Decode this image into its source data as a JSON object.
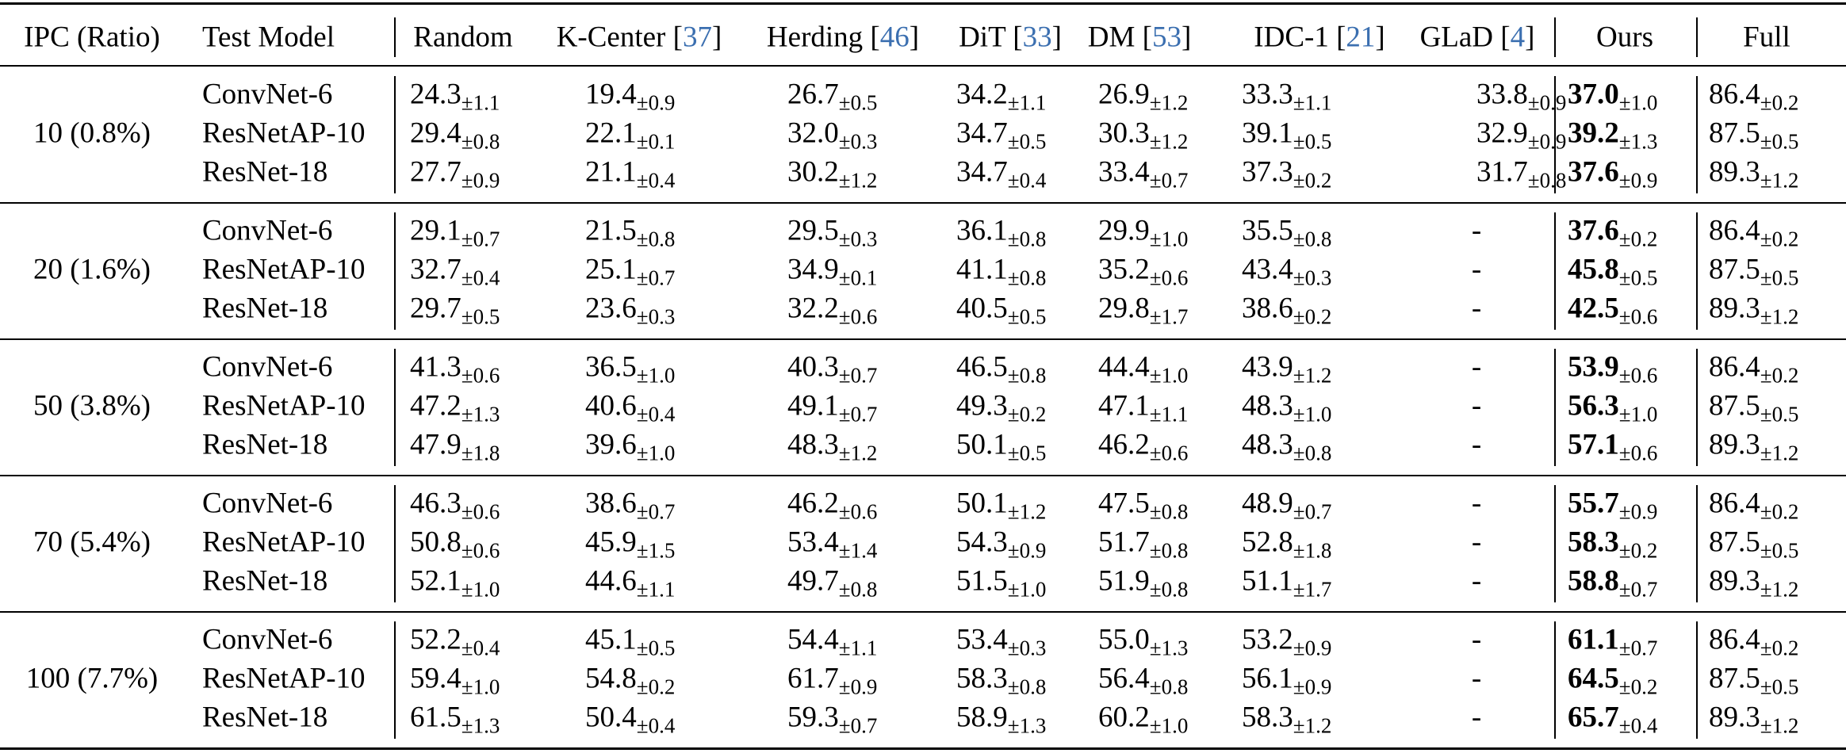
{
  "table": {
    "columns": [
      "IPC (Ratio)",
      "Test Model",
      "Random",
      [
        "K-Center [",
        "37",
        "]"
      ],
      [
        "Herding [",
        "46",
        "]"
      ],
      [
        "DiT [",
        "33",
        "]"
      ],
      [
        "DM [",
        "53",
        "]"
      ],
      [
        "IDC-1 [",
        "21",
        "]"
      ],
      [
        "GLaD [",
        "4",
        "]"
      ],
      "Ours",
      "Full"
    ],
    "groups": [
      {
        "ipc": "10 (0.8%)",
        "rows": [
          {
            "model": "ConvNet-6",
            "cells": [
              [
                "24.3",
                "±1.1"
              ],
              [
                "19.4",
                "±0.9"
              ],
              [
                "26.7",
                "±0.5"
              ],
              [
                "34.2",
                "±1.1"
              ],
              [
                "26.9",
                "±1.2"
              ],
              [
                "33.3",
                "±1.1"
              ],
              [
                "33.8",
                "±0.9"
              ],
              [
                "37.0",
                "±1.0"
              ],
              [
                "86.4",
                "±0.2"
              ]
            ]
          },
          {
            "model": "ResNetAP-10",
            "cells": [
              [
                "29.4",
                "±0.8"
              ],
              [
                "22.1",
                "±0.1"
              ],
              [
                "32.0",
                "±0.3"
              ],
              [
                "34.7",
                "±0.5"
              ],
              [
                "30.3",
                "±1.2"
              ],
              [
                "39.1",
                "±0.5"
              ],
              [
                "32.9",
                "±0.9"
              ],
              [
                "39.2",
                "±1.3"
              ],
              [
                "87.5",
                "±0.5"
              ]
            ]
          },
          {
            "model": "ResNet-18",
            "cells": [
              [
                "27.7",
                "±0.9"
              ],
              [
                "21.1",
                "±0.4"
              ],
              [
                "30.2",
                "±1.2"
              ],
              [
                "34.7",
                "±0.4"
              ],
              [
                "33.4",
                "±0.7"
              ],
              [
                "37.3",
                "±0.2"
              ],
              [
                "31.7",
                "±0.8"
              ],
              [
                "37.6",
                "±0.9"
              ],
              [
                "89.3",
                "±1.2"
              ]
            ]
          }
        ]
      },
      {
        "ipc": "20 (1.6%)",
        "rows": [
          {
            "model": "ConvNet-6",
            "cells": [
              [
                "29.1",
                "±0.7"
              ],
              [
                "21.5",
                "±0.8"
              ],
              [
                "29.5",
                "±0.3"
              ],
              [
                "36.1",
                "±0.8"
              ],
              [
                "29.9",
                "±1.0"
              ],
              [
                "35.5",
                "±0.8"
              ],
              [
                "-"
              ],
              [
                "37.6",
                "±0.2"
              ],
              [
                "86.4",
                "±0.2"
              ]
            ]
          },
          {
            "model": "ResNetAP-10",
            "cells": [
              [
                "32.7",
                "±0.4"
              ],
              [
                "25.1",
                "±0.7"
              ],
              [
                "34.9",
                "±0.1"
              ],
              [
                "41.1",
                "±0.8"
              ],
              [
                "35.2",
                "±0.6"
              ],
              [
                "43.4",
                "±0.3"
              ],
              [
                "-"
              ],
              [
                "45.8",
                "±0.5"
              ],
              [
                "87.5",
                "±0.5"
              ]
            ]
          },
          {
            "model": "ResNet-18",
            "cells": [
              [
                "29.7",
                "±0.5"
              ],
              [
                "23.6",
                "±0.3"
              ],
              [
                "32.2",
                "±0.6"
              ],
              [
                "40.5",
                "±0.5"
              ],
              [
                "29.8",
                "±1.7"
              ],
              [
                "38.6",
                "±0.2"
              ],
              [
                "-"
              ],
              [
                "42.5",
                "±0.6"
              ],
              [
                "89.3",
                "±1.2"
              ]
            ]
          }
        ]
      },
      {
        "ipc": "50 (3.8%)",
        "rows": [
          {
            "model": "ConvNet-6",
            "cells": [
              [
                "41.3",
                "±0.6"
              ],
              [
                "36.5",
                "±1.0"
              ],
              [
                "40.3",
                "±0.7"
              ],
              [
                "46.5",
                "±0.8"
              ],
              [
                "44.4",
                "±1.0"
              ],
              [
                "43.9",
                "±1.2"
              ],
              [
                "-"
              ],
              [
                "53.9",
                "±0.6"
              ],
              [
                "86.4",
                "±0.2"
              ]
            ]
          },
          {
            "model": "ResNetAP-10",
            "cells": [
              [
                "47.2",
                "±1.3"
              ],
              [
                "40.6",
                "±0.4"
              ],
              [
                "49.1",
                "±0.7"
              ],
              [
                "49.3",
                "±0.2"
              ],
              [
                "47.1",
                "±1.1"
              ],
              [
                "48.3",
                "±1.0"
              ],
              [
                "-"
              ],
              [
                "56.3",
                "±1.0"
              ],
              [
                "87.5",
                "±0.5"
              ]
            ]
          },
          {
            "model": "ResNet-18",
            "cells": [
              [
                "47.9",
                "±1.8"
              ],
              [
                "39.6",
                "±1.0"
              ],
              [
                "48.3",
                "±1.2"
              ],
              [
                "50.1",
                "±0.5"
              ],
              [
                "46.2",
                "±0.6"
              ],
              [
                "48.3",
                "±0.8"
              ],
              [
                "-"
              ],
              [
                "57.1",
                "±0.6"
              ],
              [
                "89.3",
                "±1.2"
              ]
            ]
          }
        ]
      },
      {
        "ipc": "70 (5.4%)",
        "rows": [
          {
            "model": "ConvNet-6",
            "cells": [
              [
                "46.3",
                "±0.6"
              ],
              [
                "38.6",
                "±0.7"
              ],
              [
                "46.2",
                "±0.6"
              ],
              [
                "50.1",
                "±1.2"
              ],
              [
                "47.5",
                "±0.8"
              ],
              [
                "48.9",
                "±0.7"
              ],
              [
                "-"
              ],
              [
                "55.7",
                "±0.9"
              ],
              [
                "86.4",
                "±0.2"
              ]
            ]
          },
          {
            "model": "ResNetAP-10",
            "cells": [
              [
                "50.8",
                "±0.6"
              ],
              [
                "45.9",
                "±1.5"
              ],
              [
                "53.4",
                "±1.4"
              ],
              [
                "54.3",
                "±0.9"
              ],
              [
                "51.7",
                "±0.8"
              ],
              [
                "52.8",
                "±1.8"
              ],
              [
                "-"
              ],
              [
                "58.3",
                "±0.2"
              ],
              [
                "87.5",
                "±0.5"
              ]
            ]
          },
          {
            "model": "ResNet-18",
            "cells": [
              [
                "52.1",
                "±1.0"
              ],
              [
                "44.6",
                "±1.1"
              ],
              [
                "49.7",
                "±0.8"
              ],
              [
                "51.5",
                "±1.0"
              ],
              [
                "51.9",
                "±0.8"
              ],
              [
                "51.1",
                "±1.7"
              ],
              [
                "-"
              ],
              [
                "58.8",
                "±0.7"
              ],
              [
                "89.3",
                "±1.2"
              ]
            ]
          }
        ]
      },
      {
        "ipc": "100 (7.7%)",
        "rows": [
          {
            "model": "ConvNet-6",
            "cells": [
              [
                "52.2",
                "±0.4"
              ],
              [
                "45.1",
                "±0.5"
              ],
              [
                "54.4",
                "±1.1"
              ],
              [
                "53.4",
                "±0.3"
              ],
              [
                "55.0",
                "±1.3"
              ],
              [
                "53.2",
                "±0.9"
              ],
              [
                "-"
              ],
              [
                "61.1",
                "±0.7"
              ],
              [
                "86.4",
                "±0.2"
              ]
            ]
          },
          {
            "model": "ResNetAP-10",
            "cells": [
              [
                "59.4",
                "±1.0"
              ],
              [
                "54.8",
                "±0.2"
              ],
              [
                "61.7",
                "±0.9"
              ],
              [
                "58.3",
                "±0.8"
              ],
              [
                "56.4",
                "±0.8"
              ],
              [
                "56.1",
                "±0.9"
              ],
              [
                "-"
              ],
              [
                "64.5",
                "±0.2"
              ],
              [
                "87.5",
                "±0.5"
              ]
            ]
          },
          {
            "model": "ResNet-18",
            "cells": [
              [
                "61.5",
                "±1.3"
              ],
              [
                "50.4",
                "±0.4"
              ],
              [
                "59.3",
                "±0.7"
              ],
              [
                "58.9",
                "±1.3"
              ],
              [
                "60.2",
                "±1.0"
              ],
              [
                "58.3",
                "±1.2"
              ],
              [
                "-"
              ],
              [
                "65.7",
                "±0.4"
              ],
              [
                "89.3",
                "±1.2"
              ]
            ]
          }
        ]
      }
    ]
  }
}
